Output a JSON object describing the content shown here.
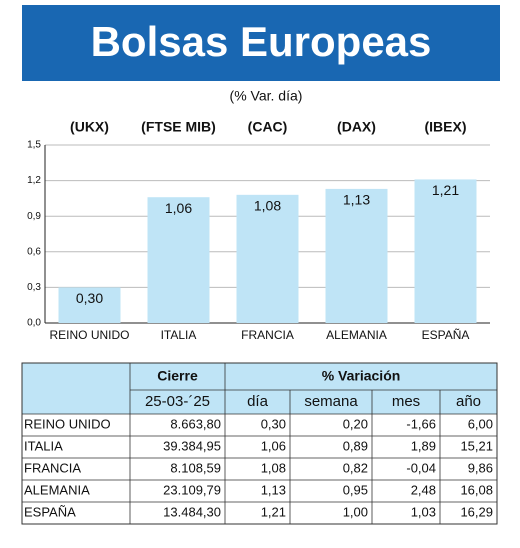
{
  "chart_data": {
    "type": "bar",
    "title": "Bolsas Europeas",
    "subtitle": "(% Var. día)",
    "categories": [
      "REINO UNIDO",
      "ITALIA",
      "FRANCIA",
      "ALEMANIA",
      "ESPAÑA"
    ],
    "tickers": [
      "(UKX)",
      "(FTSE MIB)",
      "(CAC)",
      "(DAX)",
      "(IBEX)"
    ],
    "values": [
      0.3,
      1.06,
      1.08,
      1.13,
      1.21
    ],
    "value_labels": [
      "0,30",
      "1,06",
      "1,08",
      "1,13",
      "1,21"
    ],
    "color": "#bfe4f6",
    "ylim": [
      0,
      1.5
    ],
    "yticks": [
      {
        "value": 0,
        "label": "0,0"
      },
      {
        "value": 0.3,
        "label": "0,3"
      },
      {
        "value": 0.6,
        "label": "0,6"
      },
      {
        "value": 0.9,
        "label": "0,9"
      },
      {
        "value": 1.2,
        "label": "1,2"
      },
      {
        "value": 1.5,
        "label": "1,5"
      }
    ],
    "grid": true
  },
  "table": {
    "header_groups": [
      "Cierre",
      "% Variación"
    ],
    "columns": [
      "25-03-´25",
      "día",
      "semana",
      "mes",
      "año"
    ],
    "rows": [
      [
        "REINO UNIDO",
        "8.663,80",
        "0,30",
        "0,20",
        "-1,66",
        "6,00"
      ],
      [
        "ITALIA",
        "39.384,95",
        "1,06",
        "0,89",
        "1,89",
        "15,21"
      ],
      [
        "FRANCIA",
        "8.108,59",
        "1,08",
        "0,82",
        "-0,04",
        "9,86"
      ],
      [
        "ALEMANIA",
        "23.109,79",
        "1,13",
        "0,95",
        "2,48",
        "16,08"
      ],
      [
        "ESPAÑA",
        "13.484,30",
        "1,21",
        "1,00",
        "1,03",
        "16,29"
      ]
    ]
  }
}
